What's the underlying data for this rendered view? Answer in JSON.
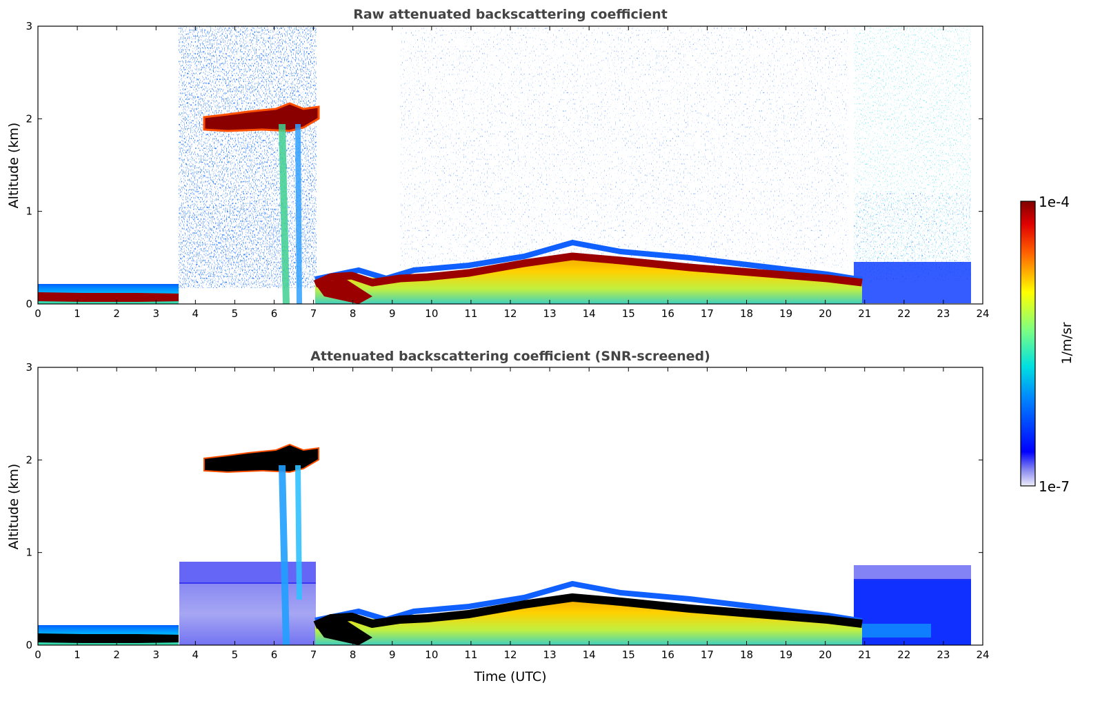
{
  "chart_data": [
    {
      "type": "heatmap",
      "title": "Raw attenuated backscattering coefficient",
      "xlabel": "",
      "ylabel": "Altitude (km)",
      "xlim": [
        0,
        24
      ],
      "ylim": [
        0,
        3
      ],
      "x_ticks": [
        "0",
        "1",
        "2",
        "3",
        "4",
        "5",
        "6",
        "7",
        "8",
        "9",
        "10",
        "11",
        "12",
        "13",
        "14",
        "15",
        "16",
        "17",
        "18",
        "19",
        "20",
        "21",
        "22",
        "23",
        "24"
      ],
      "y_ticks": [
        "0",
        "1",
        "2",
        "3"
      ],
      "grid": false,
      "features": [
        {
          "kind": "low layer",
          "x": [
            0,
            3.6
          ],
          "altitude_km": 0.08,
          "level": "high"
        },
        {
          "kind": "elevated layer",
          "x": [
            4.2,
            7.1
          ],
          "altitude_km": 2.0,
          "level": "high"
        },
        {
          "kind": "fall streaks",
          "x": [
            6.2,
            6.8
          ],
          "altitude_km": [
            0.1,
            1.9
          ],
          "level": "medium"
        },
        {
          "kind": "boundary layer top",
          "x": [
            7.1,
            21.0
          ],
          "altitude_km": [
            0.15,
            0.5
          ],
          "peak_at": 13.6,
          "level": "high"
        },
        {
          "kind": "noise",
          "x": [
            3.6,
            7.1
          ],
          "altitude_km": [
            0,
            3
          ],
          "level": "low"
        },
        {
          "kind": "noise",
          "x": [
            20.8,
            23.7
          ],
          "altitude_km": [
            0,
            3
          ],
          "level": "low"
        }
      ]
    },
    {
      "type": "heatmap",
      "title": "Attenuated backscattering coefficient (SNR-screened)",
      "xlabel": "Time (UTC)",
      "ylabel": "Altitude (km)",
      "xlim": [
        0,
        24
      ],
      "ylim": [
        0,
        3
      ],
      "x_ticks": [
        "0",
        "1",
        "2",
        "3",
        "4",
        "5",
        "6",
        "7",
        "8",
        "9",
        "10",
        "11",
        "12",
        "13",
        "14",
        "15",
        "16",
        "17",
        "18",
        "19",
        "20",
        "21",
        "22",
        "23",
        "24"
      ],
      "y_ticks": [
        "0",
        "1",
        "2",
        "3"
      ],
      "grid": false,
      "features": [
        {
          "kind": "low layer",
          "x": [
            0,
            3.6
          ],
          "altitude_km": 0.08,
          "level": "saturated"
        },
        {
          "kind": "elevated layer",
          "x": [
            4.2,
            7.1
          ],
          "altitude_km": 2.0,
          "level": "saturated"
        },
        {
          "kind": "residual layer",
          "x": [
            3.6,
            7.1
          ],
          "altitude_km": [
            0,
            0.7
          ],
          "level": "low"
        },
        {
          "kind": "boundary layer top",
          "x": [
            7.1,
            21.0
          ],
          "altitude_km": [
            0.15,
            0.5
          ],
          "peak_at": 13.6,
          "level": "saturated"
        },
        {
          "kind": "residual layer",
          "x": [
            20.8,
            23.7
          ],
          "altitude_km": [
            0,
            0.8
          ],
          "level": "low"
        }
      ]
    }
  ],
  "colorbar": {
    "label": "1/m/sr",
    "max_label": "1e-4",
    "min_label": "1e-7",
    "colormap": "jet",
    "min_color": "#e8e8f8",
    "max_color": "#800000",
    "saturated_color": "#000000"
  }
}
